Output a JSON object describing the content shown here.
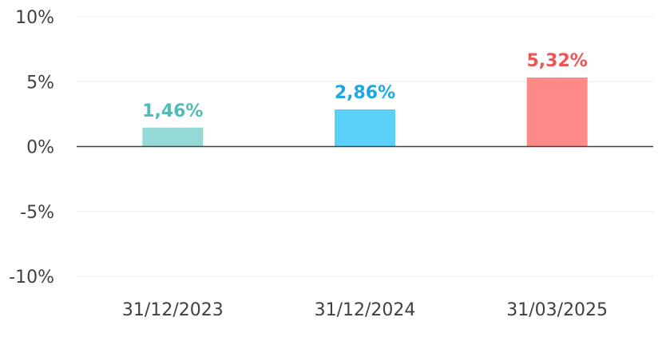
{
  "chart_data": {
    "type": "bar",
    "categories": [
      "31/12/2023",
      "31/12/2024",
      "31/03/2025"
    ],
    "values": [
      1.46,
      2.86,
      5.32
    ],
    "value_labels": [
      "1,46%",
      "2,86%",
      "5,32%"
    ],
    "bar_colors": [
      "#95d9d6",
      "#5bd0f8",
      "#fe8a88"
    ],
    "label_colors": [
      "#4fbdb7",
      "#1ea8e0",
      "#ee5452"
    ],
    "ylim": [
      -10,
      10
    ],
    "yticks": [
      10,
      5,
      0,
      -5,
      -10
    ],
    "ytick_labels": [
      "10%",
      "5%",
      "0%",
      "-5%",
      "-10%"
    ],
    "grid": true,
    "grid_color": "#ececec",
    "zero_line_color": "#404040"
  }
}
